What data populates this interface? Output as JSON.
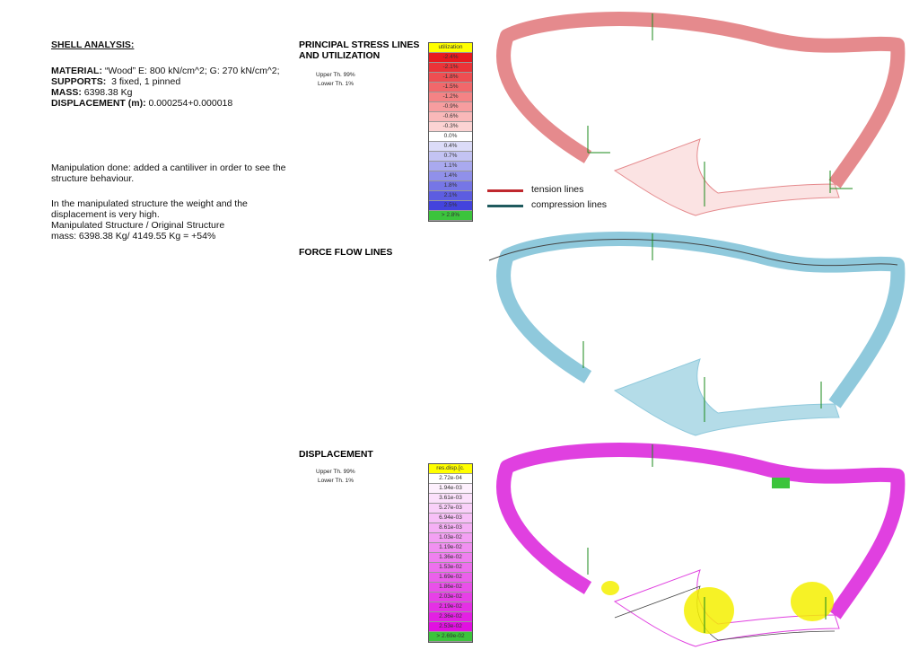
{
  "info": {
    "title": "SHELL ANALYSIS:",
    "material_label": "MATERIAL:",
    "material": " “Wood” E: 800 kN/cm^2; G: 270 kN/cm^2;",
    "supports_label": "SUPPORTS:",
    "supports": "  3 fixed, 1 pinned",
    "mass_label": "MASS:",
    "mass": " 6398.38 Kg",
    "displacement_label": "DISPLACEMENT (m):",
    "displacement": " 0.000254+0.000018"
  },
  "notes": [
    "Manipulation done: added a cantiliver in order to see the structure behaviour.",
    "In the manipulated structure the weight and the displacement is very high.",
    "Manipulated Structure / Original Structure",
    "mass: 6398.38 Kg/ 4149.55 Kg = +54%"
  ],
  "sections": [
    {
      "title": "PRINCIPAL STRESS LINES AND UTILIZATION",
      "upper_threshold": "Upper Th. 99%",
      "lower_threshold": "Lower Th. 1%",
      "legend": {
        "header": "utilization",
        "header_color": "#ffff00",
        "items": [
          {
            "label": "-2.4%",
            "color": "#e8191f"
          },
          {
            "label": "-2.1%",
            "color": "#eb3338"
          },
          {
            "label": "-1.8%",
            "color": "#ee4e52"
          },
          {
            "label": "-1.5%",
            "color": "#f1686b"
          },
          {
            "label": "-1.2%",
            "color": "#f48385"
          },
          {
            "label": "-0.9%",
            "color": "#f79d9f"
          },
          {
            "label": "-0.6%",
            "color": "#f9b8b9"
          },
          {
            "label": "-0.3%",
            "color": "#fcd3d3"
          },
          {
            "label": "0.0%",
            "color": "#ffffff"
          },
          {
            "label": "0.4%",
            "color": "#dcdcf8"
          },
          {
            "label": "0.7%",
            "color": "#c3c3f3"
          },
          {
            "label": "1.1%",
            "color": "#a9a9ef"
          },
          {
            "label": "1.4%",
            "color": "#9090ea"
          },
          {
            "label": "1.8%",
            "color": "#7676e6"
          },
          {
            "label": "2.1%",
            "color": "#5d5de1"
          },
          {
            "label": "2.5%",
            "color": "#4343dd"
          },
          {
            "label": ">     2.8%",
            "color": "#3cc43c"
          }
        ]
      },
      "line_legend": [
        {
          "label": "tension lines",
          "color": "#c0282e"
        },
        {
          "label": "compression lines",
          "color": "#1f5a5e"
        }
      ]
    },
    {
      "title": "FORCE FLOW LINES"
    },
    {
      "title": "DISPLACEMENT",
      "upper_threshold": "Upper Th. 99%",
      "lower_threshold": "Lower Th. 1%",
      "legend": {
        "header": "res.disp.[c.",
        "header_color": "#ffff00",
        "items": [
          {
            "label": "2.72e-04",
            "color": "#ffffff"
          },
          {
            "label": "1.94e-03",
            "color": "#fdf0fd"
          },
          {
            "label": "3.61e-03",
            "color": "#fbe0fb"
          },
          {
            "label": "5.27e-03",
            "color": "#f9d0f9"
          },
          {
            "label": "6.94e-03",
            "color": "#f7c0f7"
          },
          {
            "label": "8.61e-03",
            "color": "#f5b0f5"
          },
          {
            "label": "1.03e-02",
            "color": "#f3a0f3"
          },
          {
            "label": "1.19e-02",
            "color": "#f190f1"
          },
          {
            "label": "1.36e-02",
            "color": "#ef80ef"
          },
          {
            "label": "1.53e-02",
            "color": "#ed70ed"
          },
          {
            "label": "1.69e-02",
            "color": "#eb60eb"
          },
          {
            "label": "1.86e-02",
            "color": "#e950e9"
          },
          {
            "label": "2.03e-02",
            "color": "#e740e7"
          },
          {
            "label": "2.19e-02",
            "color": "#e530e5"
          },
          {
            "label": "2.36e-02",
            "color": "#e320e3"
          },
          {
            "label": "2.53e-02",
            "color": "#e110e1"
          },
          {
            "label": "> 2.69e-02",
            "color": "#3cc43c"
          }
        ]
      }
    }
  ]
}
